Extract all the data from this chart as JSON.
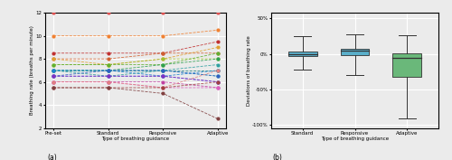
{
  "participants": [
    {
      "preset": 12,
      "standard": 12,
      "responsive": 12,
      "adaptive": 12,
      "color": "#e05050"
    },
    {
      "preset": 10,
      "standard": 10,
      "responsive": 10,
      "adaptive": 10.5,
      "color": "#f08030"
    },
    {
      "preset": 8.5,
      "standard": 8.5,
      "responsive": 8.5,
      "adaptive": 9.5,
      "color": "#c03030"
    },
    {
      "preset": 8,
      "standard": 8,
      "responsive": 8.5,
      "adaptive": 8.5,
      "color": "#d06030"
    },
    {
      "preset": 8,
      "standard": 7.5,
      "responsive": 8,
      "adaptive": 9,
      "color": "#e0a030"
    },
    {
      "preset": 7.5,
      "standard": 7.5,
      "responsive": 8,
      "adaptive": 8,
      "color": "#a0c030"
    },
    {
      "preset": 7.5,
      "standard": 7.5,
      "responsive": 7.5,
      "adaptive": 8.5,
      "color": "#60b030"
    },
    {
      "preset": 7,
      "standard": 7,
      "responsive": 7.5,
      "adaptive": 8,
      "color": "#30a050"
    },
    {
      "preset": 7,
      "standard": 7,
      "responsive": 7,
      "adaptive": 7,
      "color": "#208080"
    },
    {
      "preset": 7,
      "standard": 6.5,
      "responsive": 7,
      "adaptive": 7.5,
      "color": "#30a0a0"
    },
    {
      "preset": 7,
      "standard": 7,
      "responsive": 7,
      "adaptive": 6.5,
      "color": "#40b0c0"
    },
    {
      "preset": 7,
      "standard": 7,
      "responsive": 6.5,
      "adaptive": 7,
      "color": "#2080d0"
    },
    {
      "preset": 6.5,
      "standard": 7,
      "responsive": 7,
      "adaptive": 6.5,
      "color": "#3060c0"
    },
    {
      "preset": 6.5,
      "standard": 6.5,
      "responsive": 6.5,
      "adaptive": 6,
      "color": "#5050e0"
    },
    {
      "preset": 6.5,
      "standard": 6.5,
      "responsive": 6.5,
      "adaptive": 6,
      "color": "#8030c0"
    },
    {
      "preset": 6,
      "standard": 6,
      "responsive": 6,
      "adaptive": 5.5,
      "color": "#c040a0"
    },
    {
      "preset": 6,
      "standard": 6,
      "responsive": 5.5,
      "adaptive": 5.5,
      "color": "#e060c0"
    },
    {
      "preset": 6,
      "standard": 6,
      "responsive": 5.5,
      "adaptive": 7,
      "color": "#e08080"
    },
    {
      "preset": 5.5,
      "standard": 5.5,
      "responsive": 5.5,
      "adaptive": 6,
      "color": "#a04040"
    },
    {
      "preset": 5.5,
      "standard": 5.5,
      "responsive": 5,
      "adaptive": 2.8,
      "color": "#804040"
    }
  ],
  "xlabels_a": [
    "Pre-set",
    "Standard",
    "Responsive",
    "Adaptive"
  ],
  "ylabel_a": "Breathing rate (breaths per minute)",
  "xlabel_a": "Type of guidance",
  "label_a": "(a)",
  "ylim_a": [
    2,
    12
  ],
  "yticks_a": [
    2,
    4,
    6,
    8,
    10,
    12
  ],
  "boxes": {
    "Standard": {
      "q1": -0.03,
      "median": 0.0,
      "q3": 0.03,
      "wlo": -0.22,
      "whi": 0.25
    },
    "Responsive": {
      "q1": -0.02,
      "median": 0.04,
      "q3": 0.07,
      "wlo": -0.3,
      "whi": 0.28
    },
    "Adaptive": {
      "q1": -0.32,
      "median": -0.06,
      "q3": 0.005,
      "wlo": -0.92,
      "whi": 0.26
    }
  },
  "box_colors": {
    "Standard": "#5aafca",
    "Responsive": "#5aafca",
    "Adaptive": "#6ab87a"
  },
  "xlabels_b": [
    "Standard",
    "Responsive",
    "Adaptive"
  ],
  "ylabel_b": "Deviations of breathing rate",
  "xlabel_b": "Type of guidance",
  "label_b": "(b)",
  "ylim_b": [
    -1.05,
    0.58
  ],
  "yticks_b": [
    -1.0,
    -0.5,
    0.0,
    0.5
  ],
  "yticklabels_b": [
    "-100%",
    "-50%",
    "0%",
    "50%"
  ],
  "bg_color": "#ebebeb",
  "grid_color": "#ffffff"
}
